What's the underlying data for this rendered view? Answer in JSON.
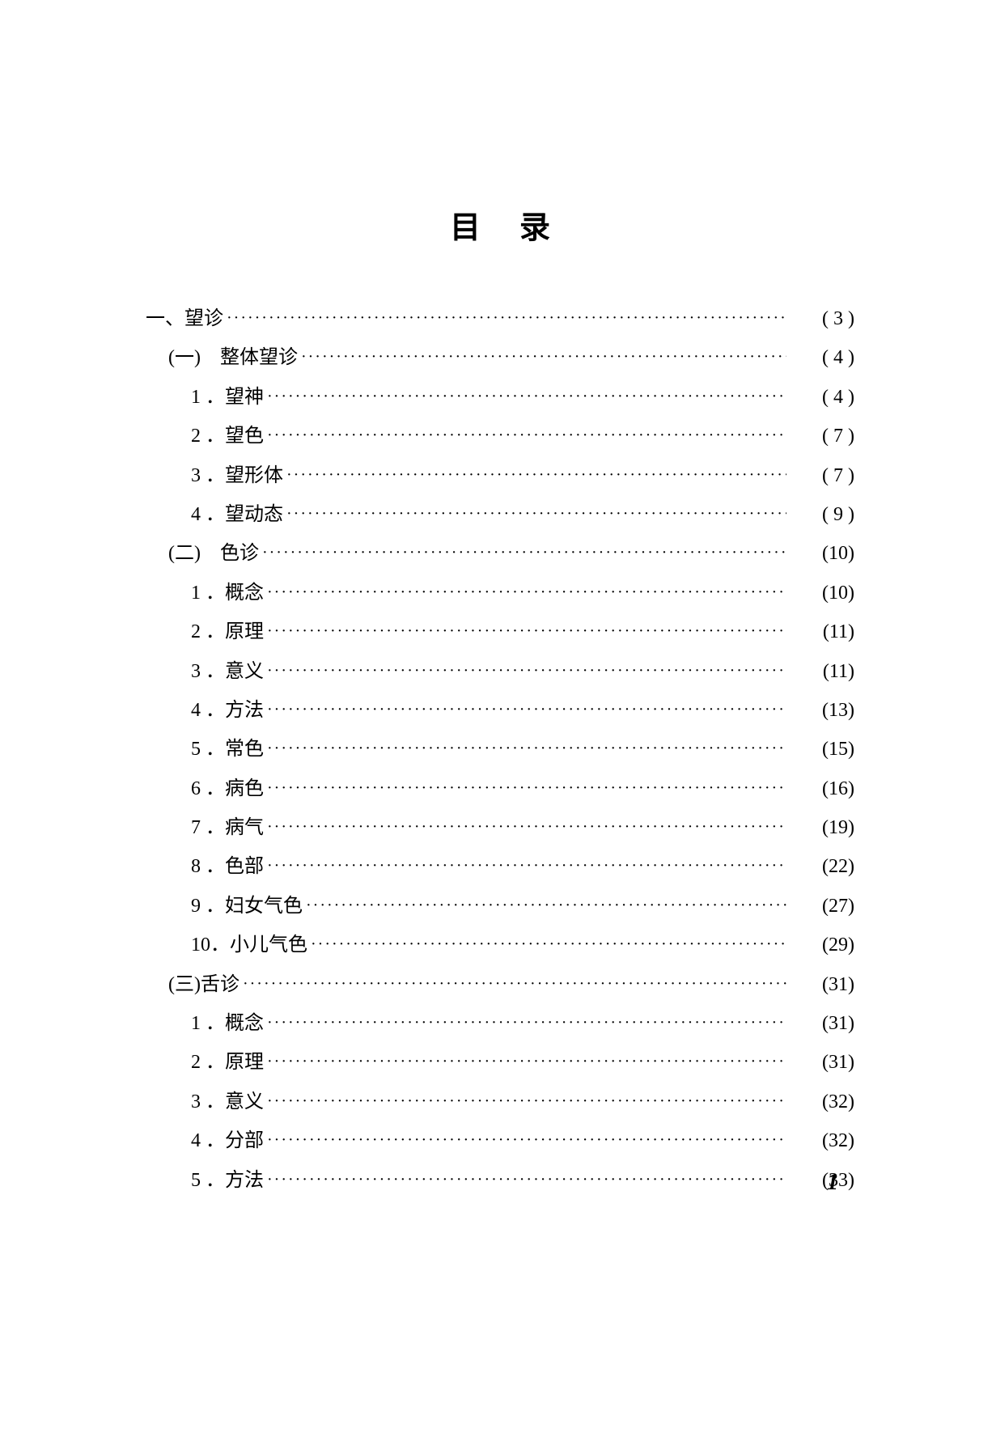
{
  "title": "目录",
  "page_number": "1",
  "entries": [
    {
      "level": 1,
      "label": "一、望诊",
      "page": "( 3 )"
    },
    {
      "level": 2,
      "label": "(一)　整体望诊",
      "page": "( 4 )"
    },
    {
      "level": 3,
      "label": "1 ．望神",
      "page": "( 4 )"
    },
    {
      "level": 3,
      "label": "2 ．望色",
      "page": "( 7 )"
    },
    {
      "level": 3,
      "label": "3 ．望形体",
      "page": "( 7 )"
    },
    {
      "level": 3,
      "label": "4 ．望动态",
      "page": "( 9 )"
    },
    {
      "level": 2,
      "label": "(二)　色诊",
      "page": "(10)"
    },
    {
      "level": 3,
      "label": "1 ．概念",
      "page": "(10)"
    },
    {
      "level": 3,
      "label": "2 ．原理",
      "page": "(11)"
    },
    {
      "level": 3,
      "label": "3 ．意义",
      "page": "(11)"
    },
    {
      "level": 3,
      "label": "4 ．方法",
      "page": "(13)"
    },
    {
      "level": 3,
      "label": "5 ．常色",
      "page": "(15)"
    },
    {
      "level": 3,
      "label": "6 ．病色",
      "page": "(16)"
    },
    {
      "level": 3,
      "label": "7 ．病气",
      "page": "(19)"
    },
    {
      "level": 3,
      "label": "8 ．色部",
      "page": "(22)"
    },
    {
      "level": 3,
      "label": "9 ．妇女气色",
      "page": "(27)"
    },
    {
      "level": 3,
      "label": "10．小儿气色",
      "page": "(29)"
    },
    {
      "level": 2,
      "label": "(三)舌诊",
      "page": "(31)"
    },
    {
      "level": 3,
      "label": "1 ．概念",
      "page": "(31)"
    },
    {
      "level": 3,
      "label": "2 ．原理",
      "page": "(31)"
    },
    {
      "level": 3,
      "label": "3 ．意义",
      "page": "(32)"
    },
    {
      "level": 3,
      "label": "4 ．分部",
      "page": "(32)"
    },
    {
      "level": 3,
      "label": "5 ．方法",
      "page": "(33)"
    }
  ]
}
